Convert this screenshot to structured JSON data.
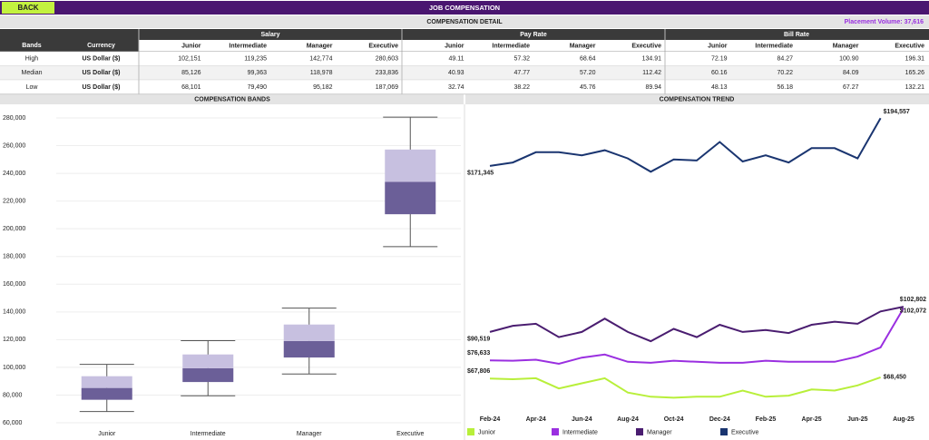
{
  "header": {
    "back": "BACK",
    "title": "JOB COMPENSATION"
  },
  "detail": {
    "title": "COMPENSATION DETAIL",
    "placement": "Placement Volume: 37,616"
  },
  "table": {
    "groups": [
      "Salary",
      "Pay Rate",
      "Bill Rate"
    ],
    "columns": [
      "Bands",
      "Currency",
      "Junior",
      "Intermediate",
      "Manager",
      "Executive",
      "Junior",
      "Intermediate",
      "Manager",
      "Executive",
      "Junior",
      "Intermediate",
      "Manager",
      "Executive"
    ],
    "rows": [
      [
        "High",
        "US Dollar ($)",
        "102,151",
        "119,235",
        "142,774",
        "280,603",
        "49.11",
        "57.32",
        "68.64",
        "134.91",
        "72.19",
        "84.27",
        "100.90",
        "196.31"
      ],
      [
        "Median",
        "US Dollar ($)",
        "85,126",
        "99,363",
        "118,978",
        "233,836",
        "40.93",
        "47.77",
        "57.20",
        "112.42",
        "60.16",
        "70.22",
        "84.09",
        "165.26"
      ],
      [
        "Low",
        "US Dollar ($)",
        "68,101",
        "79,490",
        "95,182",
        "187,069",
        "32.74",
        "38.22",
        "45.76",
        "89.94",
        "48.13",
        "56.18",
        "67.27",
        "132.21"
      ]
    ]
  },
  "chart_data": [
    {
      "type": "box",
      "title": "COMPENSATION BANDS",
      "categories": [
        "Junior",
        "Intermediate",
        "Manager",
        "Executive"
      ],
      "low": [
        68101,
        79490,
        95182,
        187069
      ],
      "q1": [
        76600,
        89400,
        107100,
        210500
      ],
      "median": [
        85126,
        99363,
        118978,
        233836
      ],
      "q3": [
        93600,
        109300,
        130900,
        257200
      ],
      "high": [
        102151,
        119235,
        142774,
        280603
      ],
      "color": {
        "lower": "#6b5f98",
        "upper": "#c7c0e0"
      },
      "ylim": [
        60000,
        280000
      ],
      "yticks": [
        {
          "value": 60000,
          "label": "60,000"
        },
        {
          "value": 80000,
          "label": "80,000"
        },
        {
          "value": 100000,
          "label": "100,000"
        },
        {
          "value": 120000,
          "label": "120,000"
        },
        {
          "value": 140000,
          "label": "140,000"
        },
        {
          "value": 160000,
          "label": "160,000"
        },
        {
          "value": 180000,
          "label": "180,000"
        },
        {
          "value": 200000,
          "label": "200,000"
        },
        {
          "value": 220000,
          "label": "220,000"
        },
        {
          "value": 240000,
          "label": "240,000"
        },
        {
          "value": 260000,
          "label": "260,000"
        },
        {
          "value": 280000,
          "label": "280,000"
        }
      ],
      "grid": true
    },
    {
      "type": "line",
      "title": "COMPENSATION TREND",
      "categories": [
        "Feb-24",
        null,
        "Apr-24",
        null,
        "Jun-24",
        null,
        "Aug-24",
        null,
        "Oct-24",
        null,
        "Dec-24",
        null,
        "Feb-25",
        null,
        "Apr-25",
        null,
        "Jun-25",
        null,
        "Aug-25"
      ],
      "series": [
        {
          "name": "Junior",
          "color": "#b8ef3a",
          "values": [
            67806,
            67500,
            68000,
            63000,
            65500,
            68000,
            61000,
            59000,
            58500,
            59000,
            59000,
            62000,
            59000,
            59500,
            62500,
            62000,
            64500,
            68450,
            null
          ],
          "value_labels": [
            "$67,806",
            null,
            null,
            null,
            null,
            null,
            null,
            null,
            null,
            null,
            null,
            null,
            null,
            null,
            null,
            null,
            null,
            "$68,450",
            null
          ]
        },
        {
          "name": "Intermediate",
          "color": "#9a2fe0",
          "values": [
            76633,
            76500,
            77000,
            75000,
            78000,
            79500,
            76000,
            75500,
            76500,
            76000,
            75500,
            75500,
            76500,
            76000,
            76000,
            76000,
            78500,
            83000,
            102072
          ],
          "value_labels": [
            "$76,633",
            null,
            null,
            null,
            null,
            null,
            null,
            null,
            null,
            null,
            null,
            null,
            null,
            null,
            null,
            null,
            null,
            null,
            "$102,072"
          ]
        },
        {
          "name": "Manager",
          "color": "#4a1d70",
          "values": [
            90519,
            93500,
            94500,
            88000,
            90500,
            97000,
            90500,
            86000,
            92000,
            88000,
            94000,
            90500,
            91500,
            90000,
            94000,
            95500,
            94500,
            100500,
            102802
          ],
          "value_labels": [
            "$90,519",
            null,
            null,
            null,
            null,
            null,
            null,
            null,
            null,
            null,
            null,
            null,
            null,
            null,
            null,
            null,
            null,
            null,
            "$102,802"
          ]
        },
        {
          "name": "Executive",
          "color": "#1a3570",
          "values": [
            171345,
            173000,
            178000,
            178000,
            176500,
            179000,
            175000,
            168500,
            174500,
            174000,
            183000,
            173500,
            176500,
            173000,
            180000,
            180000,
            175000,
            194557,
            null
          ],
          "value_labels": [
            "$171,345",
            null,
            null,
            null,
            null,
            null,
            null,
            null,
            null,
            null,
            null,
            null,
            null,
            null,
            null,
            null,
            null,
            "$194,557",
            null
          ]
        }
      ],
      "ylim": [
        60000,
        200000
      ],
      "legend": "bottom"
    }
  ]
}
